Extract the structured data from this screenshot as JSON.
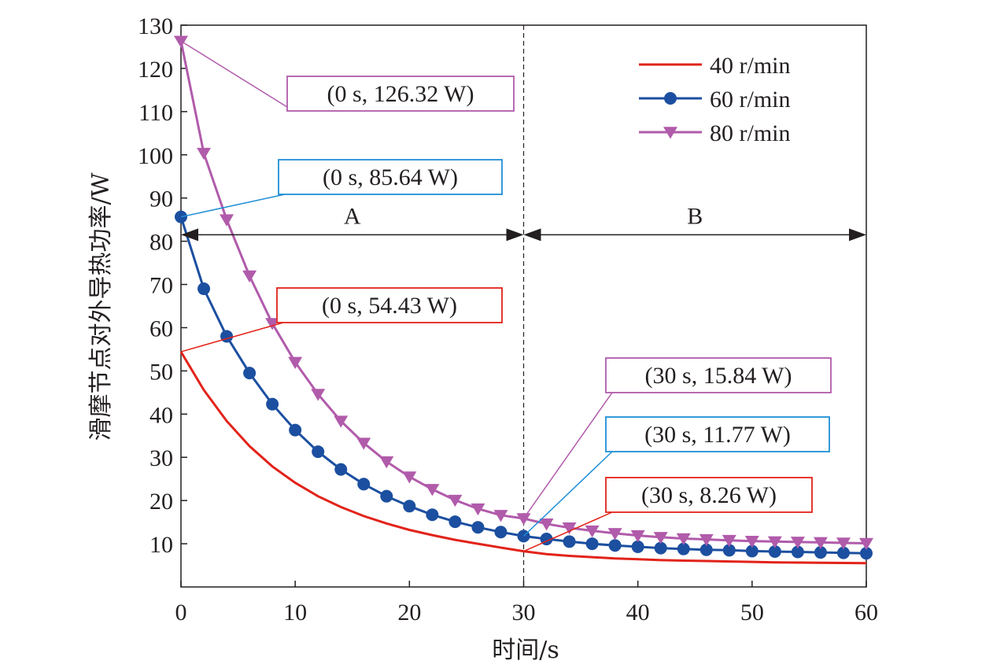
{
  "chart_data": {
    "type": "line",
    "xlabel": "时间/s",
    "ylabel": "滑摩节点对外导热功率/W",
    "xlim": [
      0,
      60
    ],
    "ylim": [
      0,
      130
    ],
    "xticks": [
      0,
      10,
      20,
      30,
      40,
      50,
      60
    ],
    "yticks": [
      10,
      20,
      30,
      40,
      50,
      60,
      70,
      80,
      90,
      100,
      110,
      120,
      130
    ],
    "x_tick_labels": [
      "0",
      "10",
      "20",
      "30",
      "40",
      "50",
      "60"
    ],
    "y_tick_labels": [
      "10",
      "20",
      "30",
      "40",
      "50",
      "60",
      "70",
      "80",
      "90",
      "100",
      "110",
      "120",
      "130"
    ],
    "grid": false,
    "legend_position": "top-right",
    "divider_x": 30,
    "regions": [
      {
        "label": "A",
        "x_start": 0,
        "x_end": 30,
        "y": 81.5
      },
      {
        "label": "B",
        "x_start": 30,
        "x_end": 60,
        "y": 81.5
      }
    ],
    "series": [
      {
        "name": "40 r/min",
        "color": "#e2231a",
        "marker": "none",
        "x": [
          0,
          2,
          4,
          6,
          8,
          10,
          12,
          14,
          16,
          18,
          20,
          22,
          24,
          26,
          28,
          30,
          32,
          34,
          36,
          38,
          40,
          42,
          44,
          46,
          48,
          50,
          52,
          54,
          56,
          58,
          60
        ],
        "values": [
          54.43,
          45.6,
          38.4,
          32.6,
          27.9,
          24.1,
          21.0,
          18.5,
          16.4,
          14.7,
          13.2,
          12.0,
          10.9,
          10.0,
          9.1,
          8.26,
          7.6,
          7.2,
          6.9,
          6.6,
          6.4,
          6.2,
          6.1,
          6.0,
          5.9,
          5.8,
          5.7,
          5.65,
          5.6,
          5.55,
          5.5
        ]
      },
      {
        "name": "60 r/min",
        "color": "#1c4fa0",
        "marker": "circle",
        "x": [
          0,
          2,
          4,
          6,
          8,
          10,
          12,
          14,
          16,
          18,
          20,
          22,
          24,
          26,
          28,
          30,
          32,
          34,
          36,
          38,
          40,
          42,
          44,
          46,
          48,
          50,
          52,
          54,
          56,
          58,
          60
        ],
        "values": [
          85.64,
          69.0,
          58.0,
          49.5,
          42.3,
          36.3,
          31.3,
          27.2,
          23.8,
          21.0,
          18.7,
          16.7,
          15.1,
          13.8,
          12.7,
          11.77,
          11.1,
          10.5,
          10.0,
          9.6,
          9.3,
          9.0,
          8.8,
          8.6,
          8.5,
          8.3,
          8.2,
          8.1,
          8.0,
          7.9,
          7.8
        ]
      },
      {
        "name": "80 r/min",
        "color": "#b15bab",
        "marker": "triangle-down",
        "x": [
          0,
          2,
          4,
          6,
          8,
          10,
          12,
          14,
          16,
          18,
          20,
          22,
          24,
          26,
          28,
          30,
          32,
          34,
          36,
          38,
          40,
          42,
          44,
          46,
          48,
          50,
          52,
          54,
          56,
          58,
          60
        ],
        "values": [
          126.32,
          100.4,
          85.0,
          72.0,
          61.0,
          52.0,
          44.6,
          38.4,
          33.3,
          29.0,
          25.5,
          22.6,
          20.1,
          18.1,
          16.6,
          15.84,
          14.6,
          13.7,
          13.0,
          12.4,
          11.9,
          11.5,
          11.2,
          11.0,
          10.8,
          10.6,
          10.5,
          10.4,
          10.3,
          10.2,
          10.1
        ]
      }
    ],
    "annotations": [
      {
        "text": "(0 s, 126.32 W)",
        "x": 0,
        "y": 126.32,
        "color": "#b15bab"
      },
      {
        "text": "(0 s, 85.64 W)",
        "x": 0,
        "y": 85.64,
        "color": "#1f8fd6"
      },
      {
        "text": "(0 s, 54.43 W)",
        "x": 0,
        "y": 54.43,
        "color": "#e2231a"
      },
      {
        "text": "(30 s, 15.84 W)",
        "x": 30,
        "y": 15.84,
        "color": "#b15bab"
      },
      {
        "text": "(30 s, 11.77 W)",
        "x": 30,
        "y": 11.77,
        "color": "#1f8fd6"
      },
      {
        "text": "(30 s, 8.26 W)",
        "x": 30,
        "y": 8.26,
        "color": "#e2231a"
      }
    ]
  }
}
